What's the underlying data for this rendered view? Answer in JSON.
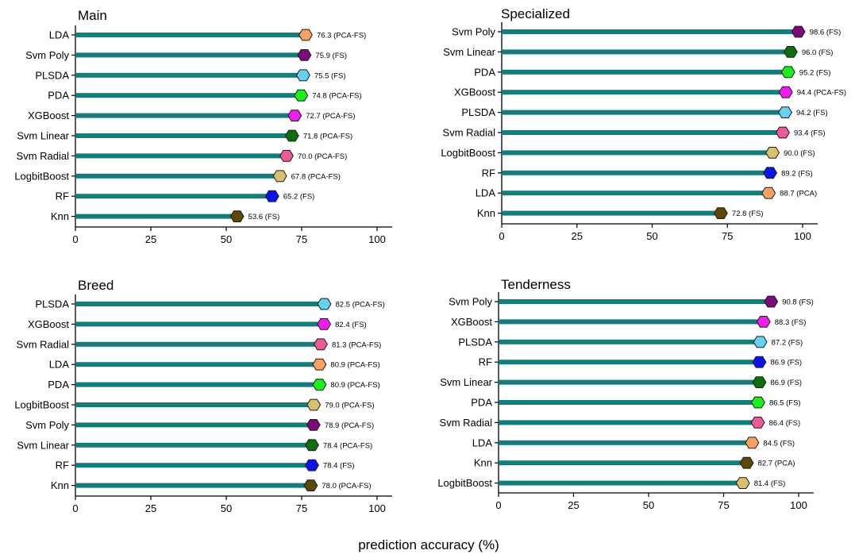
{
  "figure": {
    "xlabel": "prediction accuracy (%)"
  },
  "chart_data": [
    {
      "type": "bar",
      "title": "Main",
      "xlim": [
        0,
        105
      ],
      "xticks": [
        "0",
        "25",
        "50",
        "75",
        "100"
      ],
      "categories": [
        "LDA",
        "Svm Poly",
        "PLSDA",
        "PDA",
        "XGBoost",
        "Svm Linear",
        "Svm Radial",
        "LogbitBoost",
        "RF",
        "Knn"
      ],
      "values": [
        76.3,
        75.9,
        75.5,
        74.8,
        72.7,
        71.8,
        70.0,
        67.8,
        65.2,
        53.6
      ],
      "labels": [
        "76.3 (PCA-FS)",
        "75.9 (FS)",
        "75.5 (FS)",
        "74.8 (PCA-FS)",
        "72.7 (PCA-FS)",
        "71.8 (PCA-FS)",
        "70.0 (PCA-FS)",
        "67.8 (PCA-FS)",
        "65.2 (FS)",
        "53.6 (FS)"
      ]
    },
    {
      "type": "bar",
      "title": "Specialized",
      "xlim": [
        0,
        105
      ],
      "xticks": [
        "0",
        "25",
        "50",
        "75",
        "100"
      ],
      "categories": [
        "Svm Poly",
        "Svm Linear",
        "PDA",
        "XGBoost",
        "PLSDA",
        "Svm Radial",
        "LogbitBoost",
        "RF",
        "LDA",
        "Knn"
      ],
      "values": [
        98.6,
        96.0,
        95.2,
        94.4,
        94.2,
        93.4,
        90.0,
        89.2,
        88.7,
        72.8
      ],
      "labels": [
        "98.6 (FS)",
        "96.0 (FS)",
        "95.2 (FS)",
        "94.4 (PCA-FS)",
        "94.2 (FS)",
        "93.4 (FS)",
        "90.0 (FS)",
        "89.2 (FS)",
        "88.7 (PCA)",
        "72.8 (FS)"
      ]
    },
    {
      "type": "bar",
      "title": "Breed",
      "xlim": [
        0,
        105
      ],
      "xticks": [
        "0",
        "25",
        "50",
        "75",
        "100"
      ],
      "categories": [
        "PLSDA",
        "XGBoost",
        "Svm Radial",
        "LDA",
        "PDA",
        "LogbitBoost",
        "Svm Poly",
        "Svm Linear",
        "RF",
        "Knn"
      ],
      "values": [
        82.5,
        82.4,
        81.3,
        80.9,
        80.9,
        79.0,
        78.9,
        78.4,
        78.4,
        78.0
      ],
      "labels": [
        "82.5 (PCA-FS)",
        "82.4 (FS)",
        "81.3 (PCA-FS)",
        "80.9 (PCA-FS)",
        "80.9 (PCA-FS)",
        "79.0 (PCA-FS)",
        "78.9 (PCA-FS)",
        "78.4 (PCA-FS)",
        "78.4 (FS)",
        "78.0 (PCA-FS)"
      ]
    },
    {
      "type": "bar",
      "title": "Tenderness",
      "xlim": [
        0,
        105
      ],
      "xticks": [
        "0",
        "25",
        "50",
        "75",
        "100"
      ],
      "categories": [
        "Svm Poly",
        "XGBoost",
        "PLSDA",
        "RF",
        "Svm Linear",
        "PDA",
        "Svm Radial",
        "LDA",
        "Knn",
        "LogbitBoost"
      ],
      "values": [
        90.8,
        88.3,
        87.2,
        86.9,
        86.9,
        86.5,
        86.4,
        84.5,
        82.7,
        81.4
      ],
      "labels": [
        "90.8 (FS)",
        "88.3 (FS)",
        "87.2 (FS)",
        "86.9 (FS)",
        "86.9 (FS)",
        "86.5 (FS)",
        "86.4 (FS)",
        "84.5 (FS)",
        "82.7 (PCA)",
        "81.4 (FS)"
      ]
    }
  ],
  "style": {
    "bar_color": "#137c7c",
    "axis_color": "#000000",
    "marker_stroke": "#1a1a1a",
    "model_colors": {
      "LDA": "#f7a061",
      "Svm Poly": "#7d0a7d",
      "PLSDA": "#66d2f2",
      "PDA": "#19f019",
      "XGBoost": "#f01cf0",
      "Svm Linear": "#0b700b",
      "Svm Radial": "#ee5a96",
      "LogbitBoost": "#d8c06c",
      "RF": "#0a15ee",
      "Knn": "#5e4806"
    }
  }
}
